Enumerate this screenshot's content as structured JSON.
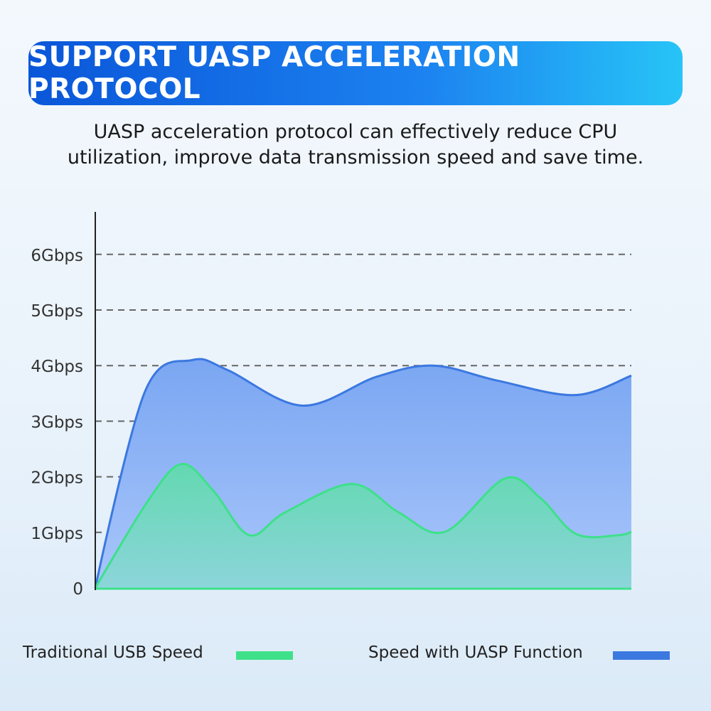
{
  "banner": {
    "title": "SUPPORT UASP ACCELERATION PROTOCOL"
  },
  "subtitle": {
    "line1": "UASP acceleration protocol can effectively reduce CPU",
    "line2": "utilization, improve data transmission speed and save time."
  },
  "colors": {
    "uasp": "#3b78e0",
    "traditional": "#3ee08a",
    "banner": "#1c82f0"
  },
  "chart_data": {
    "type": "area",
    "title": "",
    "xlabel": "",
    "ylabel": "",
    "ylim": [
      0,
      6
    ],
    "xlim": [
      0,
      100
    ],
    "grid": true,
    "y_ticks": [
      "0",
      "1Gbps",
      "2Gbps",
      "3Gbps",
      "4Gbps",
      "5Gbps",
      "6Gbps"
    ],
    "legend_position": "bottom",
    "series": [
      {
        "name": "Speed with UASP Function",
        "color": "#3b78e0",
        "x": [
          0,
          9.3,
          18.1,
          24.7,
          38.6,
          52.5,
          63.1,
          75,
          89.5,
          100
        ],
        "y": [
          0,
          3.54,
          4.1,
          3.92,
          3.28,
          3.8,
          4.0,
          3.73,
          3.47,
          3.82
        ]
      },
      {
        "name": "Traditional USB Speed",
        "color": "#3ee08a",
        "x": [
          0,
          10.2,
          16.2,
          22.1,
          28.7,
          35.4,
          47.9,
          56.6,
          65.2,
          76.4,
          83,
          89.7,
          97.6,
          100
        ],
        "y": [
          0,
          1.62,
          2.23,
          1.74,
          0.95,
          1.36,
          1.87,
          1.36,
          1.01,
          1.97,
          1.62,
          0.97,
          0.95,
          1.01
        ]
      }
    ]
  }
}
